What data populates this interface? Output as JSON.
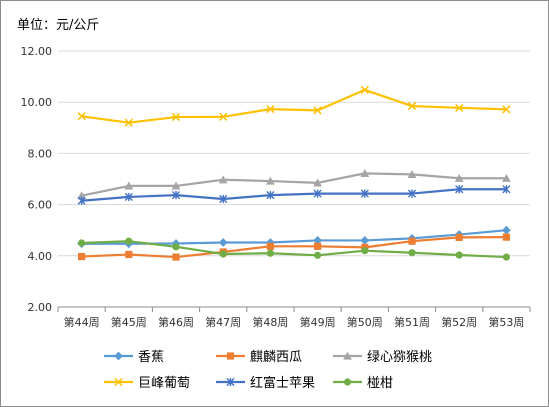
{
  "chart_data": {
    "type": "line",
    "unit_label": "单位：元/公斤",
    "categories": [
      "第44周",
      "第45周",
      "第46周",
      "第47周",
      "第48周",
      "第49周",
      "第50周",
      "第51周",
      "第52周",
      "第53周"
    ],
    "ylim": [
      2.0,
      12.0
    ],
    "yticks": [
      "2.00",
      "4.00",
      "6.00",
      "8.00",
      "10.00",
      "12.00"
    ],
    "grid": true,
    "legend_position": "bottom",
    "series": [
      {
        "name": "香蕉",
        "color": "#5b9bd5",
        "marker": "diamond",
        "values": [
          4.47,
          4.47,
          4.48,
          4.52,
          4.52,
          4.6,
          4.6,
          4.68,
          4.83,
          5.0
        ]
      },
      {
        "name": "麒麟西瓜",
        "color": "#ed7d31",
        "marker": "square",
        "values": [
          3.97,
          4.05,
          3.95,
          4.15,
          4.37,
          4.37,
          4.33,
          4.57,
          4.72,
          4.73
        ]
      },
      {
        "name": "绿心猕猴桃",
        "color": "#a5a5a5",
        "marker": "triangle",
        "values": [
          6.35,
          6.73,
          6.73,
          6.97,
          6.92,
          6.85,
          7.22,
          7.18,
          7.03,
          7.03
        ]
      },
      {
        "name": "巨峰葡萄",
        "color": "#ffc000",
        "marker": "x",
        "values": [
          9.45,
          9.2,
          9.42,
          9.43,
          9.73,
          9.68,
          10.48,
          9.85,
          9.78,
          9.72
        ]
      },
      {
        "name": "红富士苹果",
        "color": "#4472c4",
        "marker": "star",
        "values": [
          6.15,
          6.3,
          6.37,
          6.22,
          6.37,
          6.43,
          6.43,
          6.43,
          6.6,
          6.6
        ]
      },
      {
        "name": "椪柑",
        "color": "#70ad47",
        "marker": "circle",
        "values": [
          4.5,
          4.57,
          4.35,
          4.07,
          4.1,
          4.02,
          4.2,
          4.12,
          4.03,
          3.95
        ]
      }
    ]
  }
}
